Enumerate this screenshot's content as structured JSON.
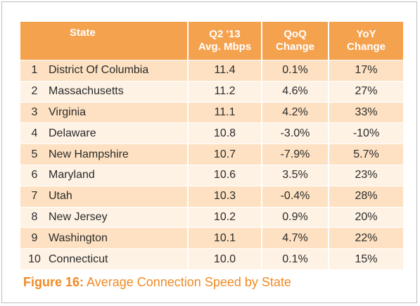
{
  "table": {
    "headers": {
      "state": "State",
      "avg_line1": "Q2 '13",
      "avg_line2": "Avg. Mbps",
      "qoq_line1": "QoQ",
      "qoq_line2": "Change",
      "yoy_line1": "YoY",
      "yoy_line2": "Change"
    },
    "rows": [
      {
        "rank": "1",
        "state": "District Of Columbia",
        "avg": "11.4",
        "qoq": "0.1%",
        "yoy": "17%"
      },
      {
        "rank": "2",
        "state": "Massachusetts",
        "avg": "11.2",
        "qoq": "4.6%",
        "yoy": "27%"
      },
      {
        "rank": "3",
        "state": "Virginia",
        "avg": "11.1",
        "qoq": "4.2%",
        "yoy": "33%"
      },
      {
        "rank": "4",
        "state": "Delaware",
        "avg": "10.8",
        "qoq": "-3.0%",
        "yoy": "-10%"
      },
      {
        "rank": "5",
        "state": "New Hampshire",
        "avg": "10.7",
        "qoq": "-7.9%",
        "yoy": "5.7%"
      },
      {
        "rank": "6",
        "state": "Maryland",
        "avg": "10.6",
        "qoq": "3.5%",
        "yoy": "23%"
      },
      {
        "rank": "7",
        "state": "Utah",
        "avg": "10.3",
        "qoq": "-0.4%",
        "yoy": "28%"
      },
      {
        "rank": "8",
        "state": "New Jersey",
        "avg": "10.2",
        "qoq": "0.9%",
        "yoy": "20%"
      },
      {
        "rank": "9",
        "state": "Washington",
        "avg": "10.1",
        "qoq": "4.7%",
        "yoy": "22%"
      },
      {
        "rank": "10",
        "state": "Connecticut",
        "avg": "10.0",
        "qoq": "0.1%",
        "yoy": "15%"
      }
    ]
  },
  "caption": {
    "label": "Figure 16:",
    "text": " Average Connection Speed by State"
  },
  "colors": {
    "header_bg": "#f5a24f",
    "row_odd": "#fde1c2",
    "row_even": "#fef2e4",
    "caption": "#f08a24"
  }
}
